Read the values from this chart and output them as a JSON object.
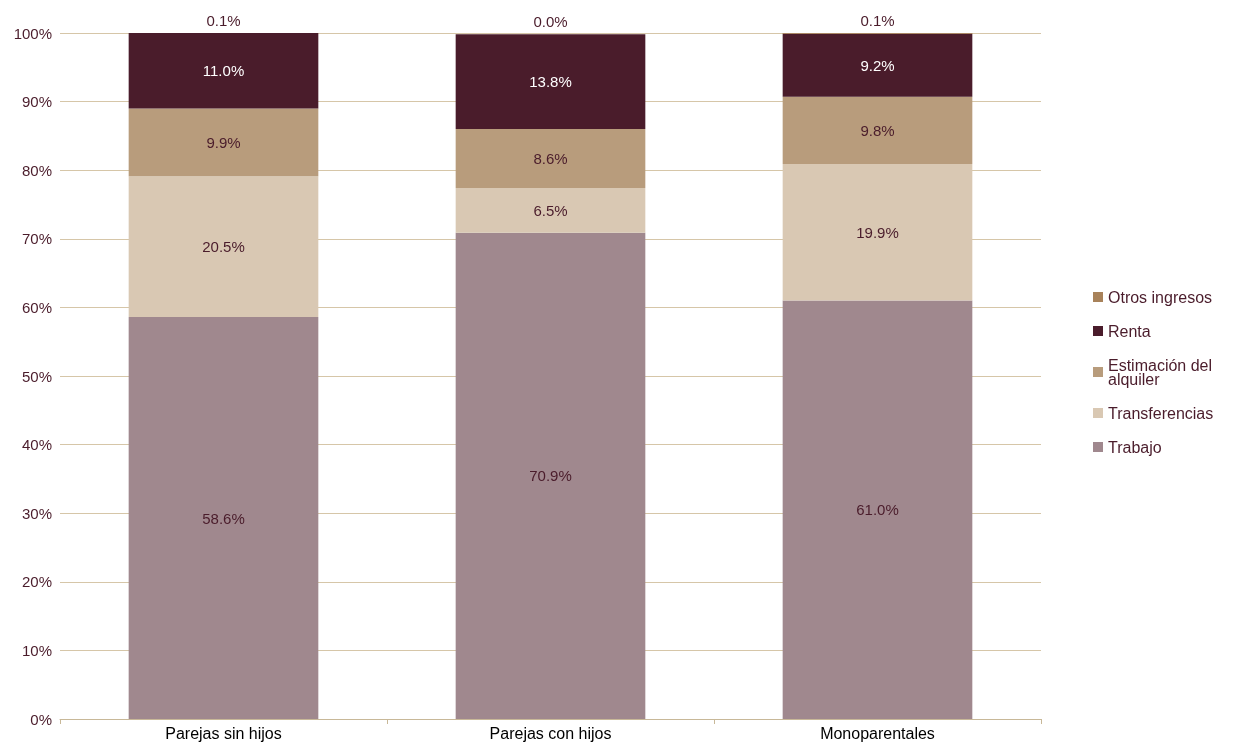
{
  "chart_data": {
    "type": "bar",
    "stacked": true,
    "categories": [
      "Parejas sin hijos",
      "Parejas con hijos",
      "Monoparentales"
    ],
    "series": [
      {
        "name": "Trabajo",
        "color": "#a0888e",
        "values": [
          58.6,
          70.9,
          61.0
        ],
        "value_labels": [
          "58.6%",
          "70.9%",
          "61.0%"
        ]
      },
      {
        "name": "Transferencias",
        "color": "#d9c8b3",
        "values": [
          20.5,
          6.5,
          19.9
        ],
        "value_labels": [
          "20.5%",
          "6.5%",
          "19.9%"
        ]
      },
      {
        "name": "Estimación del alquiler",
        "color": "#b89c7c",
        "values": [
          9.9,
          8.6,
          9.8
        ],
        "value_labels": [
          "9.9%",
          "8.6%",
          "9.8%"
        ]
      },
      {
        "name": "Renta",
        "color": "#4a1c2b",
        "values": [
          11.0,
          13.8,
          9.2
        ],
        "value_labels": [
          "11.0%",
          "13.8%",
          "9.2%"
        ]
      },
      {
        "name": "Otros ingresos",
        "color": "#a8825a",
        "values": [
          0.1,
          0.0,
          0.1
        ],
        "value_labels": [
          "0.1%",
          "0.0%",
          "0.1%"
        ]
      }
    ],
    "ylim": [
      0,
      100
    ],
    "yticks": [
      {
        "value": 0,
        "label": "0%"
      },
      {
        "value": 10,
        "label": "10%"
      },
      {
        "value": 20,
        "label": "20%"
      },
      {
        "value": 30,
        "label": "30%"
      },
      {
        "value": 40,
        "label": "40%"
      },
      {
        "value": 50,
        "label": "50%"
      },
      {
        "value": 60,
        "label": "60%"
      },
      {
        "value": 70,
        "label": "70%"
      },
      {
        "value": 80,
        "label": "80%"
      },
      {
        "value": 90,
        "label": "90%"
      },
      {
        "value": 100,
        "label": "100%"
      }
    ],
    "grid": "y",
    "legend": "right"
  }
}
